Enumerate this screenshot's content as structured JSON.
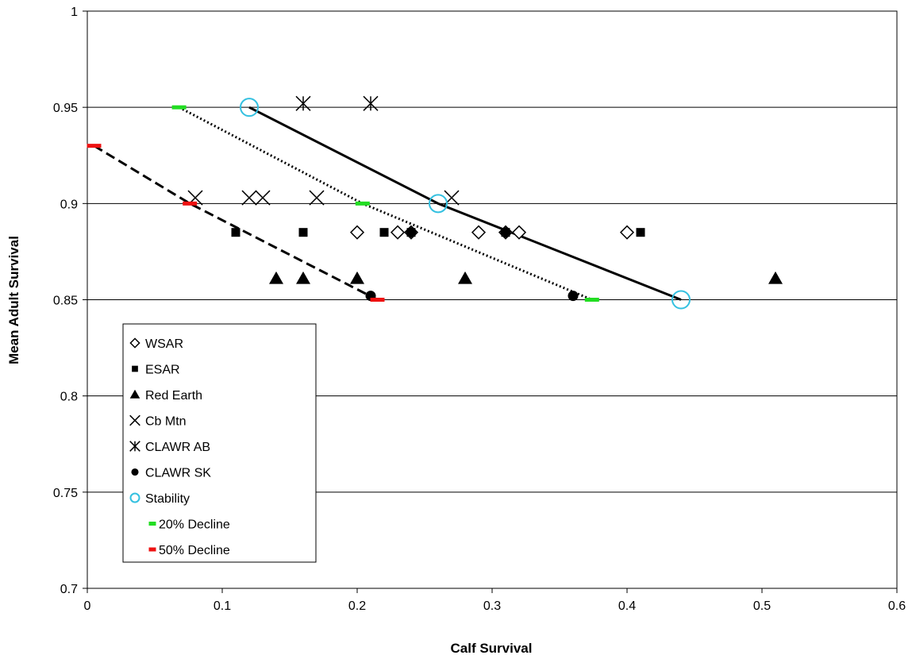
{
  "chart_data": {
    "type": "scatter",
    "title": "",
    "xlabel": "Calf Survival",
    "ylabel": "Mean Adult Survival",
    "xlim": [
      0,
      0.6
    ],
    "ylim": [
      0.7,
      1
    ],
    "x_ticks": [
      "0",
      "0.1",
      "0.2",
      "0.3",
      "0.4",
      "0.5",
      "0.6"
    ],
    "y_ticks": [
      "0.7",
      "0.75",
      "0.8",
      "0.85",
      "0.9",
      "0.95",
      "1"
    ],
    "grid": "horizontal",
    "legend_position": "bottom-left",
    "series": [
      {
        "name": "WSAR",
        "marker": "diamond-open",
        "color": "#000000",
        "points": [
          [
            0.2,
            0.885
          ],
          [
            0.23,
            0.885
          ],
          [
            0.24,
            0.885
          ],
          [
            0.29,
            0.885
          ],
          [
            0.31,
            0.885
          ],
          [
            0.32,
            0.885
          ],
          [
            0.4,
            0.885
          ]
        ]
      },
      {
        "name": "ESAR",
        "marker": "square-filled",
        "color": "#000000",
        "points": [
          [
            0.11,
            0.885
          ],
          [
            0.16,
            0.885
          ],
          [
            0.22,
            0.885
          ],
          [
            0.24,
            0.885
          ],
          [
            0.31,
            0.885
          ],
          [
            0.41,
            0.885
          ]
        ]
      },
      {
        "name": "Red Earth",
        "marker": "triangle-filled",
        "color": "#000000",
        "points": [
          [
            0.14,
            0.861
          ],
          [
            0.16,
            0.861
          ],
          [
            0.2,
            0.861
          ],
          [
            0.28,
            0.861
          ],
          [
            0.51,
            0.861
          ]
        ]
      },
      {
        "name": "Cb Mtn",
        "marker": "x",
        "color": "#000000",
        "points": [
          [
            0.08,
            0.903
          ],
          [
            0.12,
            0.903
          ],
          [
            0.13,
            0.903
          ],
          [
            0.17,
            0.903
          ],
          [
            0.27,
            0.903
          ]
        ]
      },
      {
        "name": "CLAWR AB",
        "marker": "asterisk",
        "color": "#000000",
        "points": [
          [
            0.16,
            0.952
          ],
          [
            0.21,
            0.952
          ]
        ]
      },
      {
        "name": "CLAWR SK",
        "marker": "circle-filled",
        "color": "#000000",
        "points": [
          [
            0.21,
            0.852
          ],
          [
            0.24,
            0.885
          ],
          [
            0.31,
            0.885
          ],
          [
            0.36,
            0.852
          ]
        ]
      },
      {
        "name": "Stability",
        "marker": "circle-open",
        "color": "#33c0e0",
        "line": "solid",
        "points": [
          [
            0.12,
            0.95
          ],
          [
            0.26,
            0.9
          ],
          [
            0.44,
            0.85
          ]
        ]
      },
      {
        "name": "20% Decline",
        "marker": "dash",
        "color": "#22dd22",
        "line": "dotted",
        "points": [
          [
            0.068,
            0.95
          ],
          [
            0.204,
            0.9
          ],
          [
            0.374,
            0.85
          ]
        ]
      },
      {
        "name": "50% Decline",
        "marker": "dash",
        "color": "#ee1111",
        "line": "dashed",
        "points": [
          [
            0.005,
            0.93
          ],
          [
            0.076,
            0.9
          ],
          [
            0.215,
            0.85
          ]
        ]
      }
    ]
  }
}
